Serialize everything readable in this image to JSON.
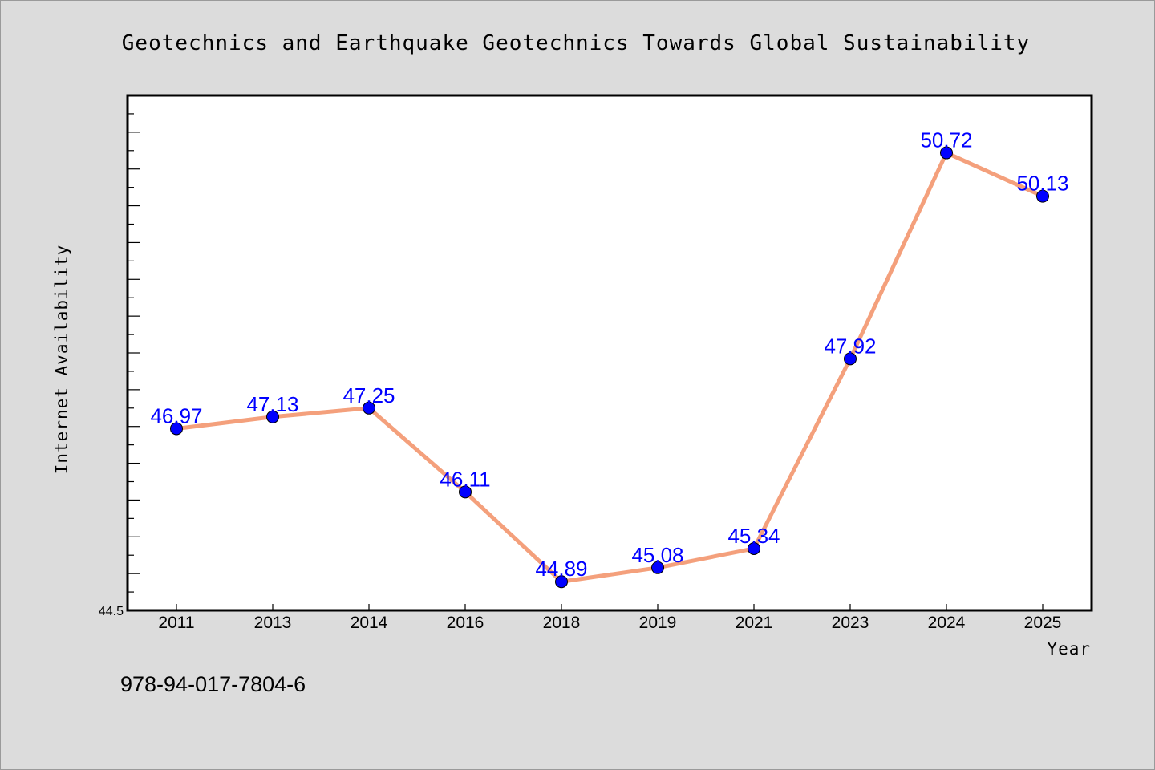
{
  "chart_data": {
    "type": "line",
    "title": "Geotechnics and Earthquake Geotechnics Towards Global Sustainability",
    "xlabel": "Year",
    "ylabel": "Internet Availability",
    "categories": [
      "2011",
      "2013",
      "2014",
      "2016",
      "2018",
      "2019",
      "2021",
      "2023",
      "2024",
      "2025"
    ],
    "series": [
      {
        "values": [
          46.97,
          47.13,
          47.25,
          46.11,
          44.89,
          45.08,
          45.34,
          47.92,
          50.72,
          50.13
        ]
      }
    ],
    "data_labels": [
      "46.97",
      "47.13",
      "47.25",
      "46.11",
      "44.89",
      "45.08",
      "45.34",
      "47.92",
      "50.72",
      "50.13"
    ],
    "ylim": [
      44.5,
      51.5
    ],
    "y_min_label": "44.5",
    "grid": false,
    "line_color": "#f4a07c",
    "marker_color": "#0000ff"
  },
  "footer": {
    "isbn": "978-94-017-7804-6"
  }
}
